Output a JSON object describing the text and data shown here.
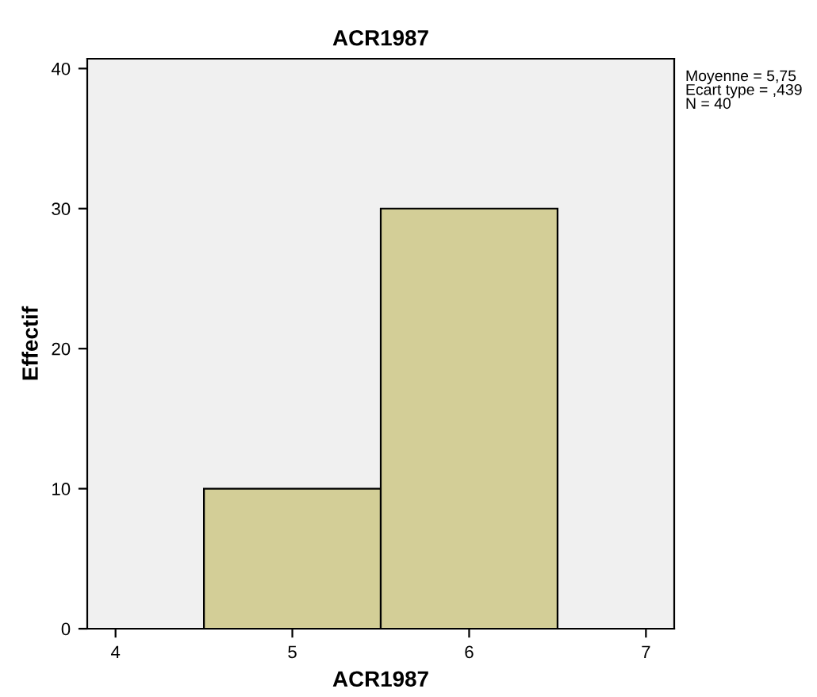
{
  "chart_data": {
    "type": "histogram",
    "title": "ACR1987",
    "xlabel": "ACR1987",
    "ylabel": "Effectif",
    "bins": [
      4.5,
      5.5,
      6.5
    ],
    "values": [
      10,
      30
    ],
    "color": "#d3ce97",
    "xlim": [
      3.84,
      7.16
    ],
    "xticks": [
      4,
      5,
      6,
      7
    ],
    "ylim": [
      0,
      40.7
    ],
    "yticks": [
      0,
      10,
      20,
      30,
      40
    ],
    "grid": false,
    "annotations": [
      "Moyenne = 5,75\nEcart type = ,439\nN = 40"
    ]
  }
}
